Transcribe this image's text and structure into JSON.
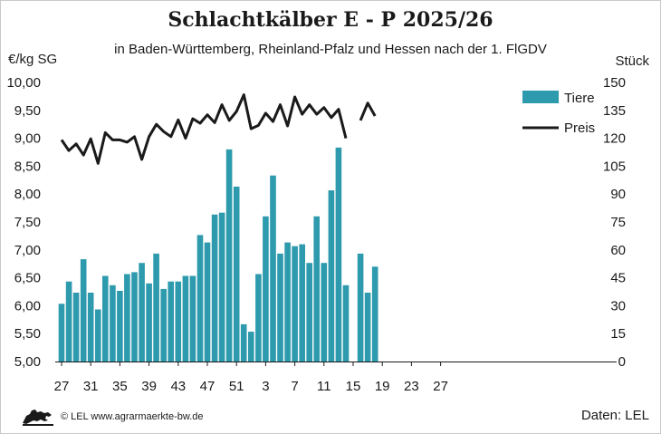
{
  "header": {
    "title": "Schlachtkälber E - P 2025/26",
    "subtitle": "in Baden-Württemberg, Rheinland-Pfalz und Hessen nach der 1. FlGDV",
    "unit_left": "€/kg SG",
    "unit_right": "Stück"
  },
  "footer": {
    "copyright": "© LEL www.agrarmaerkte-bw.de",
    "source": "Daten: LEL",
    "logo_icon": "lion-logo-icon"
  },
  "colors": {
    "bars": "#2e9aad",
    "line": "#1a1a1a"
  },
  "chart_data": {
    "type": "bar",
    "x": [
      27,
      28,
      29,
      30,
      31,
      32,
      33,
      34,
      35,
      36,
      37,
      38,
      39,
      40,
      41,
      42,
      43,
      44,
      45,
      46,
      47,
      48,
      49,
      50,
      51,
      52,
      1,
      2,
      3,
      4,
      5,
      6,
      7,
      8,
      9,
      10,
      11,
      12,
      13,
      14,
      15,
      16,
      17,
      18
    ],
    "x_ticks": [
      "27",
      "31",
      "35",
      "39",
      "43",
      "47",
      "51",
      "3",
      "7",
      "11",
      "15",
      "19",
      "23",
      "27"
    ],
    "y_left": {
      "label": "€/kg SG",
      "lim": [
        5.0,
        10.0
      ],
      "ticks": [
        "5,00",
        "5,50",
        "6,00",
        "6,50",
        "7,00",
        "7,50",
        "8,00",
        "8,50",
        "9,00",
        "9,50",
        "10,00"
      ]
    },
    "y_right": {
      "label": "Stück",
      "lim": [
        0,
        150
      ],
      "ticks": [
        "0",
        "15",
        "30",
        "45",
        "60",
        "75",
        "90",
        "105",
        "120",
        "135",
        "150"
      ]
    },
    "grid": false,
    "legend_position": "top-right",
    "series": [
      {
        "name": "Tiere",
        "type": "bar",
        "axis": "right",
        "values": [
          31,
          43,
          37,
          55,
          37,
          28,
          46,
          41,
          38,
          47,
          48,
          53,
          42,
          58,
          39,
          43,
          43,
          46,
          46,
          68,
          64,
          79,
          80,
          114,
          94,
          20,
          16,
          47,
          78,
          100,
          58,
          64,
          62,
          63,
          53,
          78,
          53,
          92,
          115,
          41,
          null,
          58,
          37,
          51
        ]
      },
      {
        "name": "Preis",
        "type": "line",
        "axis": "left",
        "values": [
          8.97,
          8.78,
          8.9,
          8.7,
          8.99,
          8.55,
          9.1,
          8.97,
          8.97,
          8.93,
          9.03,
          8.62,
          9.03,
          9.25,
          9.12,
          9.03,
          9.33,
          9.0,
          9.35,
          9.27,
          9.42,
          9.28,
          9.6,
          9.32,
          9.48,
          9.78,
          9.17,
          9.23,
          9.45,
          9.3,
          9.6,
          9.22,
          9.74,
          9.43,
          9.6,
          9.43,
          9.55,
          9.37,
          9.52,
          9.0,
          null,
          9.32,
          9.63,
          9.4
        ]
      }
    ]
  }
}
